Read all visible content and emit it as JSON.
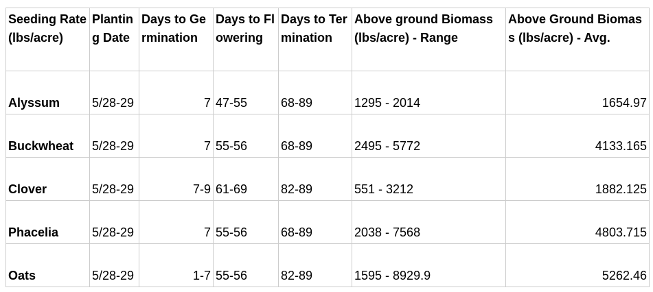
{
  "table": {
    "headers": [
      "Seeding Rate (lbs/acre)",
      "Planting Date",
      "Days to Germination",
      "Days to Flowering",
      "Days to Termination",
      "Above ground Biomass (lbs/acre) - Range",
      "Above Ground Biomass (lbs/acre) - Avg."
    ],
    "rows": [
      [
        "Alyssum",
        "5/28-29",
        "7",
        "47-55",
        "68-89",
        "1295 - 2014",
        "1654.97"
      ],
      [
        "Buckwheat",
        "5/28-29",
        "7",
        "55-56",
        "68-89",
        "2495 - 5772",
        "4133.165"
      ],
      [
        "Clover",
        "5/28-29",
        "7-9",
        "61-69",
        "82-89",
        "551 - 3212",
        "1882.125"
      ],
      [
        "Phacelia",
        "5/28-29",
        "7",
        "55-56",
        "68-89",
        "2038 - 7568",
        "4803.715"
      ],
      [
        "Oats",
        "5/28-29",
        "1-7",
        "55-56",
        "82-89",
        "1595 - 8929.9",
        "5262.46"
      ]
    ]
  }
}
